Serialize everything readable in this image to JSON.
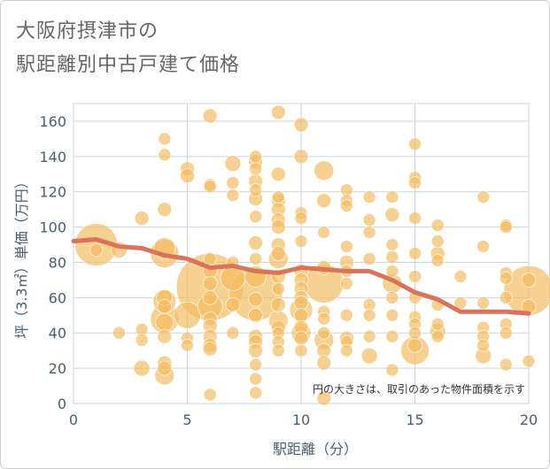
{
  "titles": {
    "line1": "大阪府摂津市の",
    "line2": "駅距離別中古戸建て価格"
  },
  "chart_data": {
    "type": "scatter",
    "xlabel": "駅距離（分）",
    "ylabel": "坪（3.3㎡）単価（万円）",
    "xlim": [
      0,
      20
    ],
    "ylim": [
      0,
      170
    ],
    "xticks": [
      0,
      5,
      10,
      15,
      20
    ],
    "yticks": [
      0,
      20,
      40,
      60,
      80,
      100,
      120,
      140,
      160
    ],
    "grid": true,
    "annotation": "円の大きさは、取引のあった物件面積を示す",
    "colors": {
      "bubble": "#f3bd63",
      "line": "#d9735a",
      "grid": "#c9d3dd",
      "axis": "#4a5f6e"
    },
    "bubbles": [
      [
        1,
        90,
        24
      ],
      [
        1,
        87,
        7
      ],
      [
        2,
        87,
        9
      ],
      [
        2,
        40,
        7
      ],
      [
        3,
        105,
        8
      ],
      [
        3,
        42,
        7
      ],
      [
        3,
        36,
        7
      ],
      [
        3,
        20,
        9
      ],
      [
        4,
        150,
        7
      ],
      [
        4,
        141,
        7
      ],
      [
        4,
        110,
        8
      ],
      [
        4,
        88,
        12
      ],
      [
        4,
        85,
        16
      ],
      [
        4,
        60,
        9
      ],
      [
        4,
        58,
        13
      ],
      [
        4,
        55,
        8
      ],
      [
        4,
        48,
        16
      ],
      [
        4,
        46,
        10
      ],
      [
        4,
        38,
        8
      ],
      [
        4,
        23,
        8
      ],
      [
        4,
        20,
        8
      ],
      [
        4,
        16,
        11
      ],
      [
        5,
        133,
        8
      ],
      [
        5,
        129,
        8
      ],
      [
        5,
        50,
        15
      ],
      [
        5,
        37,
        7
      ],
      [
        5,
        33,
        7
      ],
      [
        6,
        163,
        8
      ],
      [
        6,
        124,
        7
      ],
      [
        6,
        123,
        7
      ],
      [
        6,
        82,
        7
      ],
      [
        6,
        75,
        8
      ],
      [
        6,
        68,
        8
      ],
      [
        6,
        66,
        38
      ],
      [
        6,
        60,
        8
      ],
      [
        6,
        55,
        14
      ],
      [
        6,
        48,
        8
      ],
      [
        6,
        44,
        8
      ],
      [
        6,
        38,
        8
      ],
      [
        6,
        33,
        8
      ],
      [
        6,
        31,
        8
      ],
      [
        6,
        5,
        7
      ],
      [
        7,
        136,
        9
      ],
      [
        7,
        125,
        7
      ],
      [
        7,
        118,
        7
      ],
      [
        7,
        80,
        7
      ],
      [
        7,
        71,
        14
      ],
      [
        7,
        56,
        8
      ],
      [
        7,
        40,
        7
      ],
      [
        8,
        140,
        7
      ],
      [
        8,
        137,
        8
      ],
      [
        8,
        133,
        7
      ],
      [
        8,
        126,
        8
      ],
      [
        8,
        121,
        7
      ],
      [
        8,
        116,
        8
      ],
      [
        8,
        106,
        7
      ],
      [
        8,
        91,
        8
      ],
      [
        8,
        82,
        7
      ],
      [
        8,
        72,
        12
      ],
      [
        8,
        62,
        30
      ],
      [
        8,
        59,
        8
      ],
      [
        8,
        50,
        8
      ],
      [
        8,
        38,
        8
      ],
      [
        8,
        35,
        8
      ],
      [
        8,
        30,
        8
      ],
      [
        8,
        22,
        7
      ],
      [
        8,
        14,
        7
      ],
      [
        8,
        6,
        7
      ],
      [
        9,
        165,
        8
      ],
      [
        9,
        130,
        8
      ],
      [
        9,
        117,
        7
      ],
      [
        9,
        115,
        8
      ],
      [
        9,
        110,
        8
      ],
      [
        9,
        104,
        8
      ],
      [
        9,
        100,
        8
      ],
      [
        9,
        90,
        8
      ],
      [
        9,
        85,
        8
      ],
      [
        9,
        82,
        11
      ],
      [
        9,
        72,
        8
      ],
      [
        9,
        65,
        7
      ],
      [
        9,
        56,
        8
      ],
      [
        9,
        47,
        11
      ],
      [
        9,
        43,
        8
      ],
      [
        9,
        40,
        7
      ],
      [
        9,
        35,
        7
      ],
      [
        9,
        30,
        7
      ],
      [
        10,
        158,
        8
      ],
      [
        10,
        140,
        8
      ],
      [
        10,
        108,
        7
      ],
      [
        10,
        105,
        7
      ],
      [
        10,
        92,
        7
      ],
      [
        10,
        75,
        8
      ],
      [
        10,
        70,
        8
      ],
      [
        10,
        65,
        8
      ],
      [
        10,
        60,
        8
      ],
      [
        10,
        57,
        8
      ],
      [
        10,
        53,
        13
      ],
      [
        10,
        50,
        8
      ],
      [
        10,
        43,
        8
      ],
      [
        10,
        40,
        11
      ],
      [
        10,
        37,
        8
      ],
      [
        10,
        30,
        7
      ],
      [
        11,
        132,
        11
      ],
      [
        11,
        115,
        8
      ],
      [
        11,
        97,
        7
      ],
      [
        11,
        77,
        8
      ],
      [
        11,
        68,
        22
      ],
      [
        11,
        52,
        7
      ],
      [
        11,
        48,
        7
      ],
      [
        11,
        40,
        7
      ],
      [
        11,
        36,
        11
      ],
      [
        11,
        30,
        8
      ],
      [
        11,
        23,
        8
      ],
      [
        11,
        3,
        8
      ],
      [
        12,
        121,
        7
      ],
      [
        12,
        115,
        7
      ],
      [
        12,
        112,
        7
      ],
      [
        12,
        89,
        7
      ],
      [
        12,
        80,
        8
      ],
      [
        12,
        75,
        7
      ],
      [
        12,
        68,
        7
      ],
      [
        12,
        50,
        7
      ],
      [
        12,
        37,
        8
      ],
      [
        12,
        35,
        7
      ],
      [
        12,
        30,
        7
      ],
      [
        13,
        117,
        7
      ],
      [
        13,
        104,
        7
      ],
      [
        13,
        97,
        7
      ],
      [
        13,
        82,
        7
      ],
      [
        13,
        56,
        7
      ],
      [
        13,
        50,
        7
      ],
      [
        13,
        38,
        7
      ],
      [
        13,
        27,
        9
      ],
      [
        14,
        117,
        7
      ],
      [
        14,
        107,
        8
      ],
      [
        14,
        90,
        7
      ],
      [
        14,
        83,
        7
      ],
      [
        14,
        75,
        7
      ],
      [
        14,
        68,
        11
      ],
      [
        14,
        60,
        7
      ],
      [
        14,
        50,
        7
      ],
      [
        14,
        38,
        7
      ],
      [
        14,
        19,
        7
      ],
      [
        15,
        147,
        7
      ],
      [
        15,
        128,
        7
      ],
      [
        15,
        125,
        7
      ],
      [
        15,
        105,
        7
      ],
      [
        15,
        85,
        7
      ],
      [
        15,
        72,
        7
      ],
      [
        15,
        60,
        7
      ],
      [
        15,
        49,
        7
      ],
      [
        15,
        45,
        7
      ],
      [
        15,
        40,
        7
      ],
      [
        15,
        33,
        8
      ],
      [
        15,
        30,
        16
      ],
      [
        16,
        101,
        7
      ],
      [
        16,
        92,
        7
      ],
      [
        16,
        85,
        8
      ],
      [
        16,
        81,
        7
      ],
      [
        16,
        56,
        7
      ],
      [
        16,
        45,
        7
      ],
      [
        16,
        41,
        9
      ],
      [
        16,
        38,
        7
      ],
      [
        17,
        72,
        7
      ],
      [
        17,
        57,
        7
      ],
      [
        18,
        117,
        7
      ],
      [
        18,
        89,
        7
      ],
      [
        18,
        57,
        7
      ],
      [
        18,
        43,
        7
      ],
      [
        18,
        38,
        7
      ],
      [
        18,
        33,
        7
      ],
      [
        18,
        27,
        9
      ],
      [
        19,
        101,
        7
      ],
      [
        19,
        100,
        7
      ],
      [
        19,
        74,
        7
      ],
      [
        19,
        71,
        7
      ],
      [
        19,
        60,
        7
      ],
      [
        19,
        45,
        7
      ],
      [
        19,
        40,
        7
      ],
      [
        19,
        22,
        7
      ],
      [
        20,
        70,
        8
      ],
      [
        20,
        64,
        28
      ],
      [
        20,
        55,
        8
      ],
      [
        20,
        24,
        7
      ]
    ],
    "trend": {
      "x": [
        0,
        1,
        2,
        3,
        4,
        5,
        6,
        7,
        8,
        9,
        10,
        11,
        12,
        13,
        14,
        15,
        16,
        17,
        18,
        19,
        20
      ],
      "y": [
        92,
        93,
        89,
        88,
        84,
        82,
        77,
        78,
        75,
        74,
        77,
        76,
        75,
        75,
        70,
        63,
        59,
        52,
        52,
        52,
        51
      ]
    }
  }
}
